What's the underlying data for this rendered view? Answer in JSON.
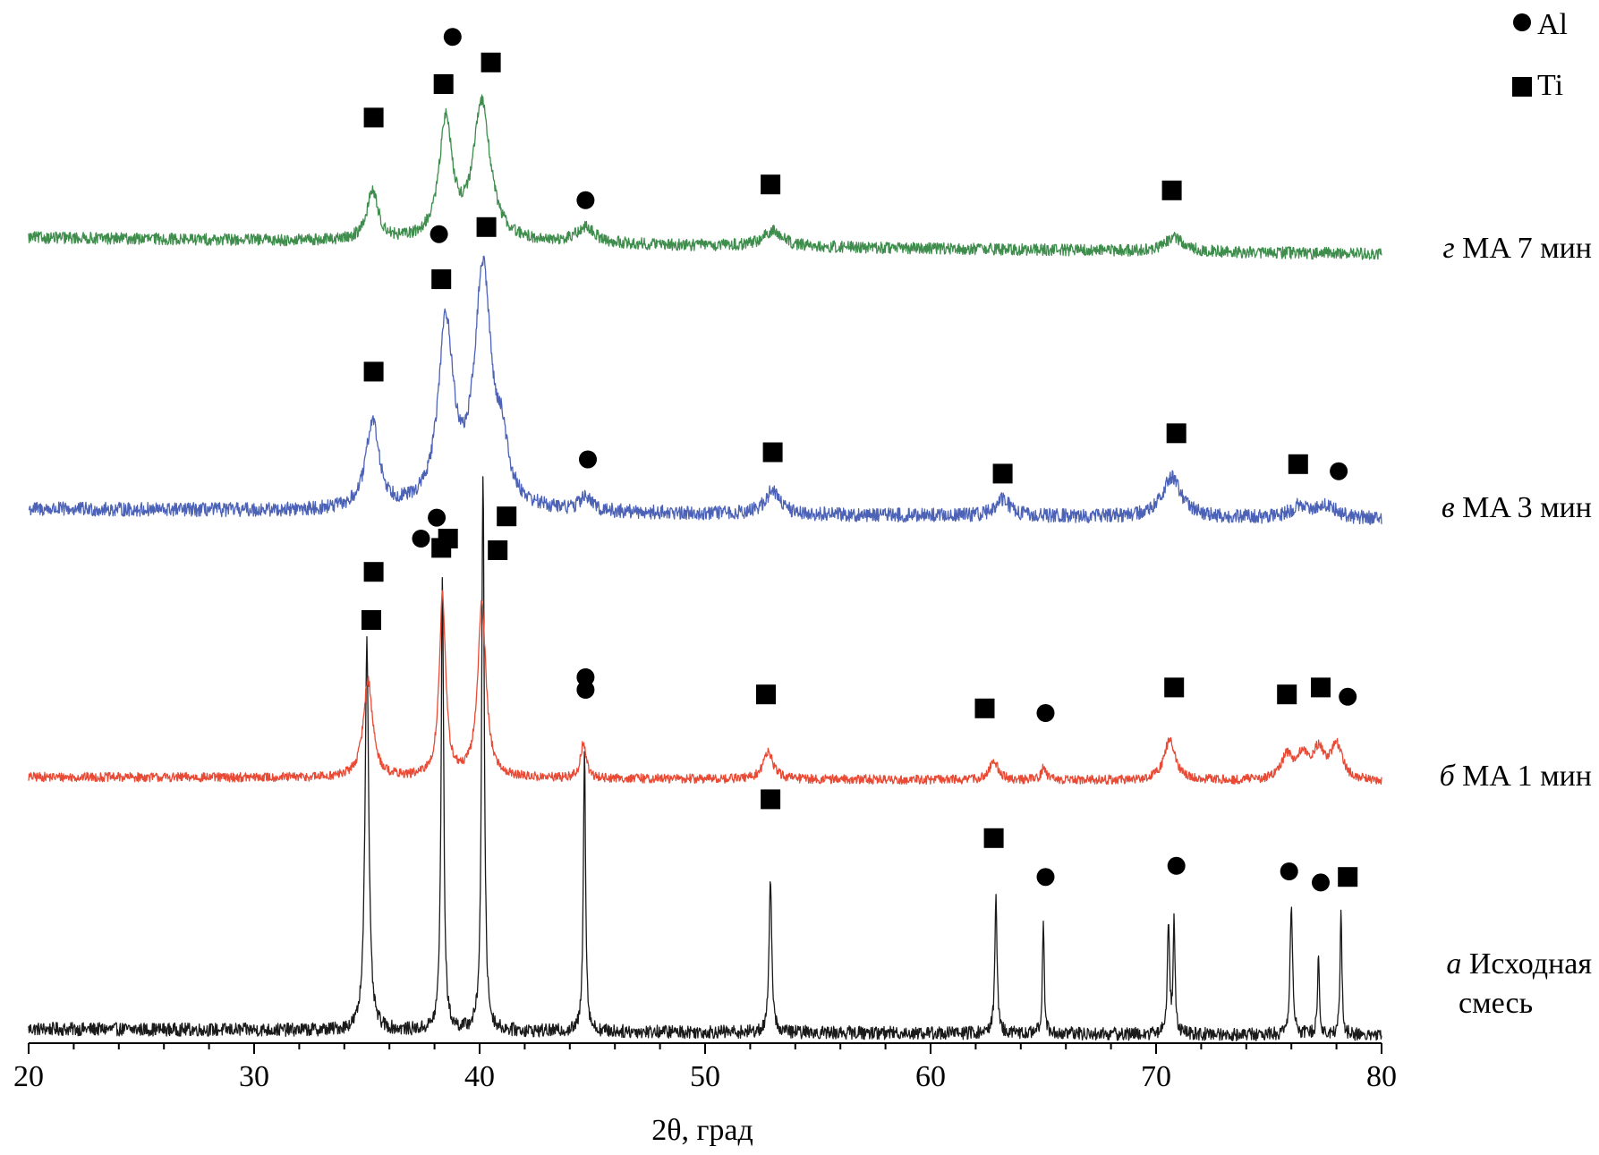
{
  "chart_data": {
    "type": "line",
    "xlabel": "2θ, град",
    "ylabel": "",
    "xlim": [
      20,
      80
    ],
    "xticks": [
      20,
      30,
      40,
      50,
      60,
      70,
      80
    ],
    "grid": false,
    "legend": {
      "placement": "top-right",
      "entries": [
        {
          "marker": "circle",
          "label": "Al"
        },
        {
          "marker": "square",
          "label": "Ti"
        }
      ]
    },
    "series": [
      {
        "key": "a",
        "label_italic": "a",
        "label_lines": [
          "Исходная",
          "смесь"
        ],
        "color": "#1a1a1a",
        "baseline_frac": 0.016,
        "noise": 0.012,
        "peaks": [
          [
            35.0,
            0.7,
            0.1
          ],
          [
            38.35,
            0.81,
            0.07
          ],
          [
            40.15,
            1.0,
            0.07
          ],
          [
            44.65,
            0.51,
            0.06
          ],
          [
            52.9,
            0.28,
            0.07
          ],
          [
            62.9,
            0.25,
            0.06
          ],
          [
            65.0,
            0.2,
            0.05
          ],
          [
            70.55,
            0.2,
            0.06
          ],
          [
            70.8,
            0.2,
            0.05
          ],
          [
            76.0,
            0.23,
            0.07
          ],
          [
            77.2,
            0.15,
            0.05
          ],
          [
            78.2,
            0.22,
            0.05
          ]
        ],
        "markers": [
          {
            "x": 35.3,
            "y": 0.84,
            "shape": "square"
          },
          {
            "x": 37.4,
            "y": 0.9,
            "shape": "circle"
          },
          {
            "x": 38.6,
            "y": 0.9,
            "shape": "square"
          },
          {
            "x": 41.2,
            "y": 0.94,
            "shape": "square"
          },
          {
            "x": 44.7,
            "y": 0.65,
            "shape": "circle"
          },
          {
            "x": 52.9,
            "y": 0.43,
            "shape": "square"
          },
          {
            "x": 62.8,
            "y": 0.36,
            "shape": "square"
          },
          {
            "x": 65.1,
            "y": 0.29,
            "shape": "circle"
          },
          {
            "x": 70.9,
            "y": 0.31,
            "shape": "circle"
          },
          {
            "x": 75.9,
            "y": 0.3,
            "shape": "circle"
          },
          {
            "x": 77.3,
            "y": 0.28,
            "shape": "circle"
          },
          {
            "x": 78.5,
            "y": 0.29,
            "shape": "square"
          }
        ]
      },
      {
        "key": "b",
        "label_italic": "б",
        "label_lines": [
          "MA 1 мин"
        ],
        "color": "#e84a35",
        "baseline_frac": 0.025,
        "noise": 0.02,
        "peaks": [
          [
            35.05,
            0.42,
            0.25
          ],
          [
            38.35,
            0.78,
            0.17
          ],
          [
            40.1,
            0.75,
            0.22
          ],
          [
            44.6,
            0.15,
            0.15
          ],
          [
            52.8,
            0.12,
            0.25
          ],
          [
            62.8,
            0.09,
            0.2
          ],
          [
            65.0,
            0.05,
            0.12
          ],
          [
            70.6,
            0.17,
            0.3
          ],
          [
            75.8,
            0.1,
            0.3
          ],
          [
            76.5,
            0.1,
            0.3
          ],
          [
            77.2,
            0.12,
            0.3
          ],
          [
            78.0,
            0.15,
            0.3
          ]
        ],
        "markers": [
          {
            "x": 35.2,
            "y": 0.7,
            "shape": "square"
          },
          {
            "x": 38.1,
            "y": 1.14,
            "shape": "circle"
          },
          {
            "x": 38.3,
            "y": 1.01,
            "shape": "square"
          },
          {
            "x": 40.8,
            "y": 1.0,
            "shape": "square"
          },
          {
            "x": 44.7,
            "y": 0.4,
            "shape": "circle"
          },
          {
            "x": 52.7,
            "y": 0.38,
            "shape": "square"
          },
          {
            "x": 62.4,
            "y": 0.32,
            "shape": "square"
          },
          {
            "x": 65.1,
            "y": 0.3,
            "shape": "circle"
          },
          {
            "x": 70.8,
            "y": 0.41,
            "shape": "square"
          },
          {
            "x": 75.8,
            "y": 0.38,
            "shape": "square"
          },
          {
            "x": 77.3,
            "y": 0.41,
            "shape": "square"
          },
          {
            "x": 78.5,
            "y": 0.37,
            "shape": "circle"
          }
        ]
      },
      {
        "key": "v",
        "label_italic": "в",
        "label_lines": [
          "MA 3 мин"
        ],
        "color": "#4c62b6",
        "baseline_frac": 0.06,
        "noise": 0.03,
        "peaks": [
          [
            35.25,
            0.37,
            0.35
          ],
          [
            38.5,
            0.77,
            0.4
          ],
          [
            40.15,
            1.0,
            0.45
          ],
          [
            41.0,
            0.2,
            0.3
          ],
          [
            44.7,
            0.06,
            0.3
          ],
          [
            53.0,
            0.1,
            0.4
          ],
          [
            63.2,
            0.07,
            0.4
          ],
          [
            70.7,
            0.17,
            0.5
          ],
          [
            76.4,
            0.05,
            0.5
          ],
          [
            77.6,
            0.05,
            0.5
          ]
        ],
        "markers": [
          {
            "x": 35.3,
            "y": 0.64,
            "shape": "square"
          },
          {
            "x": 38.2,
            "y": 1.22,
            "shape": "circle"
          },
          {
            "x": 38.3,
            "y": 1.03,
            "shape": "square"
          },
          {
            "x": 40.3,
            "y": 1.25,
            "shape": "square"
          },
          {
            "x": 44.8,
            "y": 0.27,
            "shape": "circle"
          },
          {
            "x": 53.0,
            "y": 0.3,
            "shape": "square"
          },
          {
            "x": 63.2,
            "y": 0.21,
            "shape": "square"
          },
          {
            "x": 70.9,
            "y": 0.38,
            "shape": "square"
          },
          {
            "x": 76.3,
            "y": 0.25,
            "shape": "square"
          },
          {
            "x": 78.1,
            "y": 0.22,
            "shape": "circle"
          }
        ]
      },
      {
        "key": "g",
        "label_italic": "г",
        "label_lines": [
          "MA 7 мин"
        ],
        "color": "#3e8d4c",
        "baseline_frac": 0.12,
        "noise": 0.03,
        "peaks": [
          [
            35.25,
            0.25,
            0.3
          ],
          [
            38.5,
            0.6,
            0.35
          ],
          [
            40.1,
            0.7,
            0.45
          ],
          [
            44.7,
            0.08,
            0.5
          ],
          [
            53.0,
            0.08,
            0.5
          ],
          [
            70.8,
            0.07,
            0.5
          ]
        ],
        "markers": [
          {
            "x": 35.3,
            "y": 0.73,
            "shape": "square"
          },
          {
            "x": 38.8,
            "y": 1.14,
            "shape": "circle"
          },
          {
            "x": 38.4,
            "y": 0.9,
            "shape": "square"
          },
          {
            "x": 40.5,
            "y": 1.01,
            "shape": "square"
          },
          {
            "x": 44.7,
            "y": 0.31,
            "shape": "circle"
          },
          {
            "x": 52.9,
            "y": 0.39,
            "shape": "square"
          },
          {
            "x": 70.7,
            "y": 0.36,
            "shape": "square"
          }
        ]
      }
    ]
  }
}
